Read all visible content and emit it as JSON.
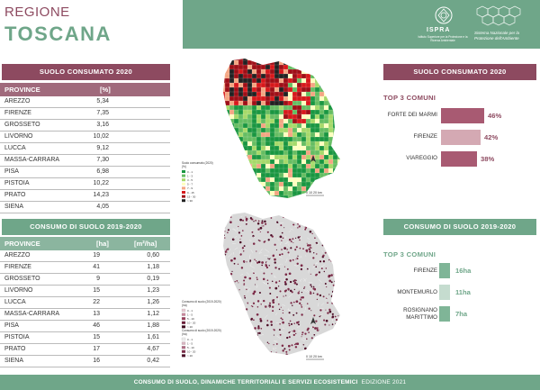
{
  "header": {
    "region_label": "REGIONE",
    "region_name": "TOSCANA",
    "ispra_name": "ISPRA",
    "ispra_sub": "Istituto Superiore per la Protezione e la Ricerca Ambientale",
    "snpa_text": "Sistema Nazionale per la Protezione dell'Ambiente"
  },
  "section1": {
    "title": "SUOLO CONSUMATO 2020",
    "col_province": "PROVINCE",
    "col_unit": "[%]",
    "rows": [
      {
        "name": "AREZZO",
        "value": "5,34"
      },
      {
        "name": "FIRENZE",
        "value": "7,35"
      },
      {
        "name": "GROSSETO",
        "value": "3,16"
      },
      {
        "name": "LIVORNO",
        "value": "10,02"
      },
      {
        "name": "LUCCA",
        "value": "9,12"
      },
      {
        "name": "MASSA-CARRARA",
        "value": "7,30"
      },
      {
        "name": "PISA",
        "value": "6,98"
      },
      {
        "name": "PISTOIA",
        "value": "10,22"
      },
      {
        "name": "PRATO",
        "value": "14,23"
      },
      {
        "name": "SIENA",
        "value": "4,05"
      }
    ]
  },
  "section2": {
    "title": "CONSUMO DI SUOLO 2019-2020",
    "col_province": "PROVINCE",
    "col_ha": "[ha]",
    "col_m2ha": "[m²/ha]",
    "rows": [
      {
        "name": "AREZZO",
        "ha": "19",
        "m2ha": "0,60"
      },
      {
        "name": "FIRENZE",
        "ha": "41",
        "m2ha": "1,18"
      },
      {
        "name": "GROSSETO",
        "ha": "9",
        "m2ha": "0,19"
      },
      {
        "name": "LIVORNO",
        "ha": "15",
        "m2ha": "1,23"
      },
      {
        "name": "LUCCA",
        "ha": "22",
        "m2ha": "1,26"
      },
      {
        "name": "MASSA-CARRARA",
        "ha": "13",
        "m2ha": "1,12"
      },
      {
        "name": "PISA",
        "ha": "46",
        "m2ha": "1,88"
      },
      {
        "name": "PISTOIA",
        "ha": "15",
        "m2ha": "1,61"
      },
      {
        "name": "PRATO",
        "ha": "17",
        "m2ha": "4,67"
      },
      {
        "name": "SIENA",
        "ha": "16",
        "m2ha": "0,42"
      }
    ]
  },
  "map1": {
    "legend_title": "Suolo consumato (2020)",
    "legend_unit": "(%)",
    "legend_items": [
      {
        "label": "0 - 1",
        "color": "#1a9641"
      },
      {
        "label": "1 - 3",
        "color": "#66bd63"
      },
      {
        "label": "3 - 5",
        "color": "#a6d96a"
      },
      {
        "label": "5 - 7",
        "color": "#ffffbf"
      },
      {
        "label": "7 - 9",
        "color": "#f4a582"
      },
      {
        "label": "9 - 15",
        "color": "#d7191c"
      },
      {
        "label": "15 - 30",
        "color": "#9e0f17"
      },
      {
        "label": "> 30",
        "color": "#222222"
      }
    ],
    "scale": "0  10  20 km"
  },
  "map2": {
    "legend1_title": "Consumo di suolo (2019-2020)",
    "legend1_unit": "(ha)",
    "legend1_items": [
      {
        "label": "0 - 1",
        "color": "#e8c9d2"
      },
      {
        "label": "1 - 5",
        "color": "#c9879b"
      },
      {
        "label": "5 - 10",
        "color": "#9a3c5a"
      },
      {
        "label": "10 - 20",
        "color": "#6b1a36"
      },
      {
        "label": "> 20",
        "color": "#3e0a1e"
      }
    ],
    "legend2_title": "Consumo di suolo (2019-2020)",
    "legend2_unit": "(ha)",
    "legend2_items": [
      {
        "label": "0 - 1",
        "color": "#eeeeee"
      },
      {
        "label": "1 - 5",
        "color": "#d9b5c1"
      },
      {
        "label": "5 - 10",
        "color": "#b06b84"
      },
      {
        "label": "10 - 20",
        "color": "#7c2a47"
      },
      {
        "label": "> 20",
        "color": "#4c0c26"
      }
    ],
    "scale": "0  10  20 km"
  },
  "top1": {
    "title": "SUOLO CONSUMATO 2020",
    "subtitle": "TOP 3 COMUNI",
    "items": [
      {
        "name": "FORTE DEI MARMI",
        "value": "46%",
        "pct": 46
      },
      {
        "name": "FIRENZE",
        "value": "42%",
        "pct": 42
      },
      {
        "name": "VIAREGGIO",
        "value": "38%",
        "pct": 38
      }
    ]
  },
  "top2": {
    "title": "CONSUMO DI SUOLO 2019-2020",
    "subtitle": "TOP 3 COMUNI",
    "items": [
      {
        "name": "FIRENZE",
        "value": "16ha",
        "ha": 16
      },
      {
        "name": "MONTEMURLO",
        "value": "11ha",
        "ha": 11
      },
      {
        "name": "ROSIGNANO MARITTIMO",
        "value": "7ha",
        "ha": 7
      }
    ]
  },
  "footer": {
    "text": "CONSUMO DI SUOLO, DINAMICHE TERRITORIALI E SERVIZI ECOSISTEMICI",
    "edition": "EDIZIONE 2021"
  },
  "colors": {
    "maroon": "#8d4a60",
    "green": "#6fa689",
    "bar1": "#a85a72",
    "bar2": "#d4a9b3",
    "bar_green": "#7fb597",
    "bar_green_light": "#c5dccf"
  }
}
